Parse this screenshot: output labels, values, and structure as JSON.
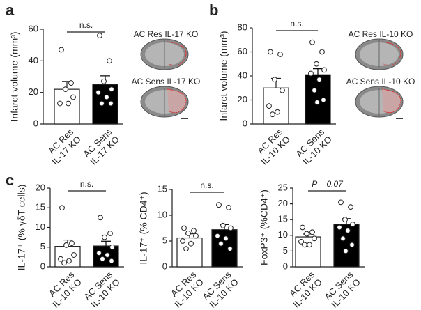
{
  "panel_labels": [
    "a",
    "b",
    "c"
  ],
  "chart_data": [
    {
      "type": "bar",
      "ylabel": "Infarct volume (mm³)",
      "categories": [
        [
          "AC Res",
          "IL-17 KO"
        ],
        [
          "AC Sens",
          "IL-17 KO"
        ]
      ],
      "values": [
        22,
        25
      ],
      "errors": [
        5,
        5.5
      ],
      "points": [
        [
          47,
          26,
          22,
          17,
          13,
          13
        ],
        [
          56,
          40,
          27,
          22,
          20,
          17,
          13,
          13
        ]
      ],
      "colors": [
        "#ffffff",
        "#000000"
      ],
      "annotation": "n.s.",
      "image_labels": [
        "AC Res IL-17 KO",
        "AC Sens IL-17 KO"
      ],
      "ylim": [
        0,
        60
      ],
      "yticks": [
        0,
        20,
        40,
        60
      ]
    },
    {
      "type": "bar",
      "ylabel": "Infarct volume (mm³)",
      "categories": [
        [
          "AC Res",
          "IL-10 KO"
        ],
        [
          "AC Sens",
          "IL-10 KO"
        ]
      ],
      "values": [
        30,
        41
      ],
      "errors": [
        8,
        5
      ],
      "points": [
        [
          60,
          58,
          37,
          28,
          15,
          10,
          8
        ],
        [
          68,
          60,
          50,
          45,
          42,
          37,
          28,
          20,
          18
        ]
      ],
      "colors": [
        "#ffffff",
        "#000000"
      ],
      "annotation": "n.s.",
      "image_labels": [
        "AC Res IL-10 KO",
        "AC Sens IL-10 KO"
      ],
      "ylim": [
        0,
        80
      ],
      "yticks": [
        0,
        20,
        40,
        60,
        80
      ]
    },
    {
      "type": "bar",
      "ylabel": "IL-17⁺ (% γδT cells)",
      "categories": [
        [
          "AC Res",
          "IL-10 KO"
        ],
        [
          "AC Sens",
          "IL-10 KO"
        ]
      ],
      "values": [
        5.2,
        5.3
      ],
      "errors": [
        1.6,
        1.2
      ],
      "points": [
        [
          15,
          6,
          5.5,
          3,
          2,
          1.5,
          1
        ],
        [
          12.5,
          8.5,
          7.5,
          5,
          3.5,
          3,
          2,
          1.5
        ]
      ],
      "colors": [
        "#ffffff",
        "#000000"
      ],
      "annotation": "n.s.",
      "ylim": [
        0,
        20
      ],
      "yticks": [
        0,
        5,
        10,
        15,
        20
      ]
    },
    {
      "type": "bar",
      "ylabel": "IL-17⁺ (% CD4⁺)",
      "categories": [
        [
          "AC Res",
          "IL-10 KO"
        ],
        [
          "AC Sens",
          "IL-10 KO"
        ]
      ],
      "values": [
        5.6,
        7.2
      ],
      "errors": [
        0.8,
        1.0
      ],
      "points": [
        [
          7.5,
          7,
          6.5,
          6,
          5,
          4.5,
          3.5
        ],
        [
          12,
          11.5,
          8,
          7.5,
          6,
          5.5,
          4.5,
          3.5
        ]
      ],
      "colors": [
        "#ffffff",
        "#000000"
      ],
      "annotation": "n.s.",
      "ylim": [
        0,
        15
      ],
      "yticks": [
        0,
        5,
        10,
        15
      ]
    },
    {
      "type": "bar",
      "ylabel": "FoxP3⁺ (%CD4⁺)",
      "categories": [
        [
          "AC Res",
          "IL-10 KO"
        ],
        [
          "AC Sens",
          "IL-10 KO"
        ]
      ],
      "values": [
        9.5,
        13.5
      ],
      "errors": [
        0.9,
        1.8
      ],
      "points": [
        [
          12.5,
          11,
          10.5,
          9,
          8,
          7,
          7
        ],
        [
          20.5,
          19,
          15,
          13.5,
          12.5,
          11.5,
          9,
          7,
          5
        ]
      ],
      "colors": [
        "#ffffff",
        "#000000"
      ],
      "annotation": "P = 0.07",
      "ylim": [
        0,
        25
      ],
      "yticks": [
        0,
        5,
        10,
        15,
        20,
        25
      ]
    }
  ]
}
